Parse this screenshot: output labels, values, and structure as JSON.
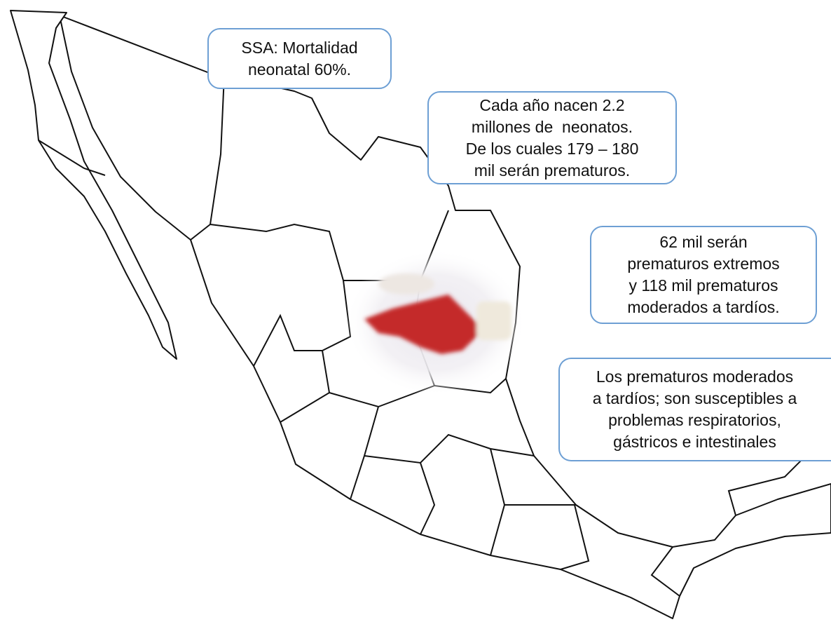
{
  "callouts": [
    {
      "lines": [
        "SSA: Mortalidad",
        "neonatal 60%."
      ]
    },
    {
      "lines": [
        "Cada año nacen 2.2",
        "millones de  neonatos.",
        "De los cuales 179 – 180",
        "mil serán prematuros."
      ]
    },
    {
      "lines": [
        "62 mil serán",
        "prematuros extremos",
        "y 118 mil prematuros",
        "moderados a tardíos."
      ]
    },
    {
      "lines": [
        "Los prematuros moderados",
        "a tardíos; son susceptibles a",
        "problemas respiratorios,",
        "gástricos e intestinales"
      ]
    }
  ]
}
